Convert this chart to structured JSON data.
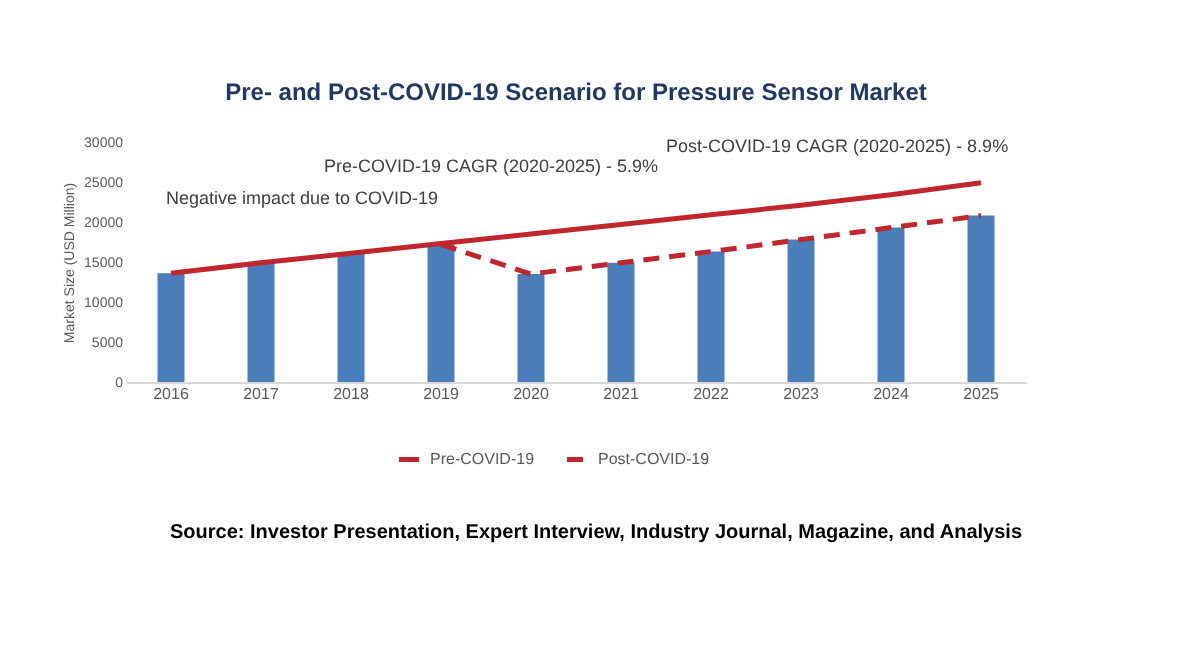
{
  "chart_data": {
    "type": "bar",
    "title": "Pre- and Post-COVID-19 Scenario for Pressure Sensor Market",
    "ylabel": "Market Size (USD Million)",
    "categories": [
      "2016",
      "2017",
      "2018",
      "2019",
      "2020",
      "2021",
      "2022",
      "2023",
      "2024",
      "2025"
    ],
    "ylim": [
      0,
      30000
    ],
    "yticks": [
      0,
      5000,
      10000,
      15000,
      20000,
      25000,
      30000
    ],
    "legend": "bottom",
    "series": [
      {
        "color": "#4a7ebb",
        "values": [
          13600,
          15000,
          16000,
          17200,
          13500,
          14900,
          16300,
          17800,
          19300,
          20800
        ]
      },
      {
        "type": "line",
        "name": "Pre-COVID-19",
        "color": "#c0262d",
        "line_style": "solid",
        "values": [
          13600,
          14900,
          16100,
          17300,
          18500,
          19700,
          20900,
          22100,
          23400,
          24900
        ]
      },
      {
        "type": "line",
        "name": "Post-COVID-19",
        "color": "#c0262d",
        "line_style": "dashed",
        "values": [
          null,
          null,
          null,
          17200,
          13500,
          14900,
          16300,
          17800,
          19300,
          20800
        ]
      }
    ],
    "annotations": [
      "Negative impact due to COVID-19",
      "Pre-COVID-19 CAGR (2020-2025) - 5.9%",
      "Post-COVID-19 CAGR (2020-2025) - 8.9%",
      "Source: Investor Presentation, Expert Interview, Industry Journal, Magazine, and Analysis"
    ]
  }
}
